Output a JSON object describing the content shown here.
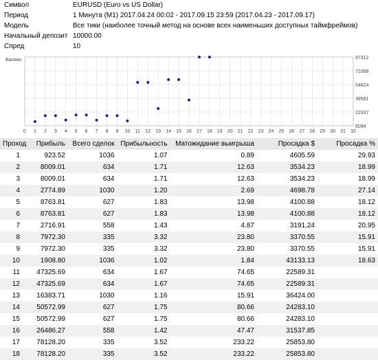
{
  "info": {
    "symbol_label": "Символ",
    "symbol_value": "EURUSD (Euro vs US Dollar)",
    "period_label": "Период",
    "period_value": "1 Минута (M1) 2017.04.24 00:02 - 2017.09.15 23:59 (2017.04.23 - 2017.09.17)",
    "model_label": "Модель",
    "model_value": "Все тики (наиболее точный метод на основе всех наименьших доступных таймфреймов)",
    "deposit_label": "Начальный депозит",
    "deposit_value": "10000.00",
    "spread_label": "Спред",
    "spread_value": "10"
  },
  "chart": {
    "ylabel": "Баланс",
    "x_ticks": [
      0,
      1,
      2,
      3,
      4,
      5,
      6,
      7,
      8,
      9,
      10,
      11,
      12,
      13,
      14,
      15,
      16,
      17,
      18,
      19,
      20,
      21,
      22,
      23,
      24,
      25,
      26,
      27,
      28,
      29,
      30,
      31,
      32
    ],
    "y_ticks": [
      6094,
      22337,
      38581,
      54824,
      71068,
      87312
    ],
    "xlim": [
      0,
      32
    ],
    "ylim": [
      6094,
      87312
    ],
    "grid_color": "#d6d6d6",
    "point_color": "#1a1aa8",
    "point_radius": 2,
    "points": [
      {
        "x": 1,
        "y": 10924
      },
      {
        "x": 2,
        "y": 18009
      },
      {
        "x": 3,
        "y": 18009
      },
      {
        "x": 4,
        "y": 12775
      },
      {
        "x": 5,
        "y": 18764
      },
      {
        "x": 6,
        "y": 18764
      },
      {
        "x": 7,
        "y": 12717
      },
      {
        "x": 8,
        "y": 17972
      },
      {
        "x": 9,
        "y": 17972
      },
      {
        "x": 10,
        "y": 11909
      },
      {
        "x": 11,
        "y": 57326
      },
      {
        "x": 12,
        "y": 57326
      },
      {
        "x": 13,
        "y": 26384
      },
      {
        "x": 14,
        "y": 60573
      },
      {
        "x": 15,
        "y": 60573
      },
      {
        "x": 16,
        "y": 36486
      },
      {
        "x": 17,
        "y": 88128
      },
      {
        "x": 18,
        "y": 88128
      }
    ]
  },
  "table": {
    "headers": {
      "pass": "Проход",
      "profit": "Прибыль",
      "trades": "Всего сделок",
      "pf": "Прибыльность",
      "payoff": "Матожидание выигрыша",
      "dd": "Просадка $",
      "ddp": "Просадка %"
    },
    "rows": [
      {
        "pass": "1",
        "profit": "923.52",
        "trades": "1036",
        "pf": "1.07",
        "payoff": "0.89",
        "dd": "4605.59",
        "ddp": "29.93"
      },
      {
        "pass": "2",
        "profit": "8009.01",
        "trades": "634",
        "pf": "1.71",
        "payoff": "12.63",
        "dd": "3534.23",
        "ddp": "18.99"
      },
      {
        "pass": "3",
        "profit": "8009.01",
        "trades": "634",
        "pf": "1.71",
        "payoff": "12.63",
        "dd": "3534.23",
        "ddp": "18.99"
      },
      {
        "pass": "4",
        "profit": "2774.89",
        "trades": "1030",
        "pf": "1.20",
        "payoff": "2.69",
        "dd": "4698.78",
        "ddp": "27.14"
      },
      {
        "pass": "5",
        "profit": "8763.81",
        "trades": "627",
        "pf": "1.83",
        "payoff": "13.98",
        "dd": "4100.88",
        "ddp": "18.12"
      },
      {
        "pass": "6",
        "profit": "8763.81",
        "trades": "627",
        "pf": "1.83",
        "payoff": "13.98",
        "dd": "4100.88",
        "ddp": "18.12"
      },
      {
        "pass": "7",
        "profit": "2716.91",
        "trades": "558",
        "pf": "1.43",
        "payoff": "4.87",
        "dd": "3191.24",
        "ddp": "20.95"
      },
      {
        "pass": "8",
        "profit": "7972.30",
        "trades": "335",
        "pf": "3.32",
        "payoff": "23.80",
        "dd": "3370.55",
        "ddp": "15.91"
      },
      {
        "pass": "9",
        "profit": "7972.30",
        "trades": "335",
        "pf": "3.32",
        "payoff": "23.80",
        "dd": "3370.55",
        "ddp": "15.91"
      },
      {
        "pass": "10",
        "profit": "1908.80",
        "trades": "1036",
        "pf": "1.02",
        "payoff": "1.84",
        "dd": "43133.13",
        "ddp": "18.63"
      },
      {
        "pass": "11",
        "profit": "47325.69",
        "trades": "634",
        "pf": "1.67",
        "payoff": "74.65",
        "dd": "22589.31",
        "ddp": ""
      },
      {
        "pass": "12",
        "profit": "47325.69",
        "trades": "634",
        "pf": "1.67",
        "payoff": "74.65",
        "dd": "22589.31",
        "ddp": ""
      },
      {
        "pass": "13",
        "profit": "16383.71",
        "trades": "1030",
        "pf": "1.16",
        "payoff": "15.91",
        "dd": "36424.00",
        "ddp": ""
      },
      {
        "pass": "14",
        "profit": "50572.99",
        "trades": "627",
        "pf": "1.75",
        "payoff": "80.66",
        "dd": "24283.10",
        "ddp": ""
      },
      {
        "pass": "15",
        "profit": "50572.99",
        "trades": "627",
        "pf": "1.75",
        "payoff": "80.66",
        "dd": "24283.10",
        "ddp": ""
      },
      {
        "pass": "16",
        "profit": "26486.27",
        "trades": "558",
        "pf": "1.42",
        "payoff": "47.47",
        "dd": "31537.85",
        "ddp": ""
      },
      {
        "pass": "17",
        "profit": "78128.20",
        "trades": "335",
        "pf": "3.52",
        "payoff": "233.22",
        "dd": "25853.80",
        "ddp": ""
      },
      {
        "pass": "18",
        "profit": "78128.20",
        "trades": "335",
        "pf": "3.52",
        "payoff": "233.22",
        "dd": "25853.80",
        "ddp": ""
      }
    ]
  }
}
